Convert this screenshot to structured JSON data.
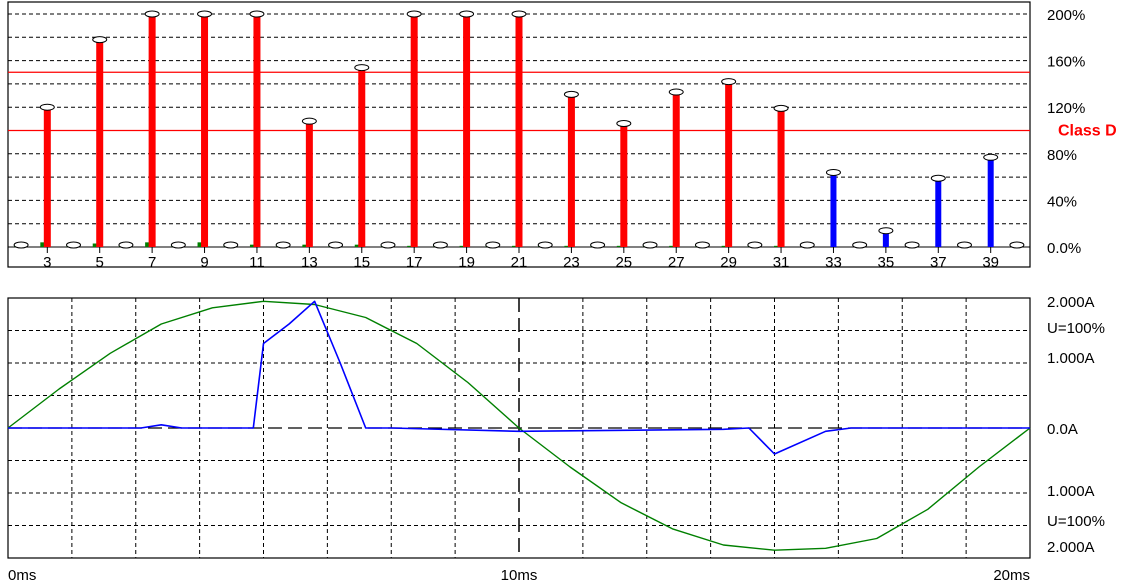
{
  "colors": {
    "background": "#ffffff",
    "limit_bar": "#ff0000",
    "ok_bar": "#0000ff",
    "measured_small": "#008000",
    "limit_line": "#ff0000",
    "voltage_trace": "#008000",
    "current_trace": "#0000ff",
    "grid": "#000000",
    "class_label": "#ff0000"
  },
  "chart_data": [
    {
      "type": "bar",
      "title": "",
      "xlabel": "",
      "ylabel": "",
      "ylim": [
        0,
        200
      ],
      "grid": true,
      "y_tick_values": [
        0,
        40,
        80,
        120,
        160,
        200
      ],
      "y_tick_labels": [
        "0.0%",
        "40%",
        "80%",
        "120%",
        "160%",
        "200%"
      ],
      "x_tick_labels": [
        "3",
        "5",
        "7",
        "9",
        "11",
        "13",
        "15",
        "17",
        "19",
        "21",
        "23",
        "25",
        "27",
        "29",
        "31",
        "33",
        "35",
        "37",
        "39"
      ],
      "class_label": "Class D",
      "class_level": 100,
      "limit_lines": [
        100,
        150
      ],
      "harmonics": [
        2,
        3,
        4,
        5,
        6,
        7,
        8,
        9,
        10,
        11,
        12,
        13,
        14,
        15,
        16,
        17,
        18,
        19,
        20,
        21,
        22,
        23,
        24,
        25,
        26,
        27,
        28,
        29,
        30,
        31,
        32,
        33,
        34,
        35,
        36,
        37,
        38,
        39,
        40
      ],
      "values": [
        2,
        120,
        1,
        178,
        1,
        200,
        1,
        200,
        1,
        200,
        1,
        108,
        1,
        154,
        1,
        200,
        1,
        200,
        1,
        200,
        1,
        131,
        1,
        106,
        1,
        133,
        1,
        142,
        1,
        119,
        1,
        64,
        1,
        14,
        1,
        59,
        1,
        77,
        1
      ],
      "measured_small": [
        3,
        4,
        2,
        3,
        2,
        4,
        1,
        4,
        1,
        2,
        1,
        2,
        1,
        2,
        1,
        1,
        1,
        1,
        1,
        1,
        1,
        1,
        1,
        1,
        1,
        1,
        1,
        1,
        1,
        1,
        0,
        0,
        0,
        0,
        0,
        0,
        0,
        0,
        0
      ],
      "bar_color_by_value": {
        "exceeds_limit": "red",
        "within_limit": "blue"
      }
    },
    {
      "type": "line",
      "title": "",
      "xlabel": "",
      "ylabel": "",
      "xlim": [
        0,
        20
      ],
      "ylim": [
        -2,
        2
      ],
      "grid": true,
      "x_tick_labels": [
        "0ms",
        "10ms",
        "20ms"
      ],
      "y_labels_top": [
        "2.000A",
        "U=100%",
        "1.000A"
      ],
      "y_label_zero": "0.0A",
      "y_labels_bottom": [
        "1.000A",
        "U=100%",
        "2.000A"
      ],
      "series": [
        {
          "color": "green",
          "x": [
            0,
            1,
            2,
            3,
            4,
            5,
            6,
            7,
            8,
            9,
            10,
            11,
            12,
            13,
            14,
            15,
            16,
            17,
            18,
            19,
            20
          ],
          "y": [
            0,
            0.6,
            1.15,
            1.6,
            1.85,
            1.95,
            1.9,
            1.7,
            1.3,
            0.7,
            0,
            -0.6,
            -1.15,
            -1.55,
            -1.8,
            -1.88,
            -1.85,
            -1.7,
            -1.25,
            -0.6,
            0
          ]
        },
        {
          "color": "blue",
          "x": [
            0,
            2.6,
            3.0,
            3.4,
            3.8,
            4.2,
            4.5,
            4.8,
            5.0,
            5.5,
            6.0,
            6.5,
            7.0,
            7.5,
            10,
            14,
            14.5,
            15.0,
            16.0,
            16.5,
            20
          ],
          "y": [
            0,
            0,
            0.05,
            0,
            0,
            0,
            0,
            0,
            1.3,
            1.6,
            1.95,
            1.0,
            0,
            0,
            -0.05,
            -0.02,
            0,
            -0.4,
            -0.05,
            0,
            0
          ]
        }
      ]
    }
  ]
}
